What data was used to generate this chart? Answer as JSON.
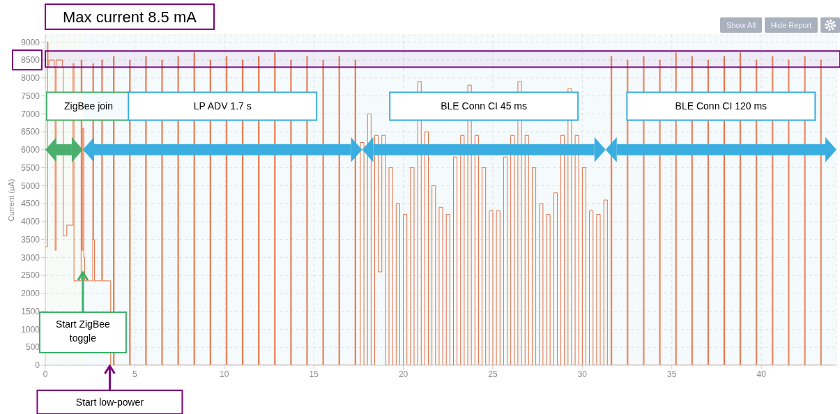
{
  "chart_data": {
    "type": "step",
    "ylabel": "Current (µA)",
    "xlim": [
      0,
      44.2
    ],
    "xticks": [
      0,
      5,
      10,
      15,
      20,
      25,
      30,
      35,
      40
    ],
    "ylim": [
      0,
      9200
    ],
    "yticks": [
      0,
      500,
      1000,
      1500,
      2000,
      2500,
      3000,
      3500,
      4000,
      4500,
      5000,
      5500,
      6000,
      6500,
      7000,
      7500,
      8000,
      8500,
      9000
    ],
    "grid": true,
    "line_style": "solid",
    "marker": "none",
    "legend": false,
    "series": [
      {
        "color": "#f26b38",
        "x": [
          0,
          0.12,
          0.15,
          0.2,
          0.5,
          0.55,
          0.6,
          0.95,
          1.0,
          1.2,
          1.5,
          1.55,
          1.6,
          2.0,
          2.05,
          2.1,
          2.15,
          2.2,
          2.65,
          2.7,
          2.75,
          3.15,
          3.2,
          3.6,
          3.65,
          3.8,
          3.85,
          4.7,
          4.75,
          5.6,
          5.65,
          6.5,
          6.55,
          7.4,
          7.45,
          8.3,
          8.35,
          9.2,
          9.25,
          10.1,
          10.15,
          11.0,
          11.05,
          11.9,
          11.95,
          12.8,
          12.85,
          13.7,
          13.75,
          14.6,
          14.65,
          15.5,
          15.55,
          16.4,
          16.45,
          17.3,
          17.35,
          17.6,
          17.8,
          18.0,
          18.2,
          18.4,
          18.6,
          18.8,
          19.0,
          19.2,
          19.4,
          19.6,
          19.8,
          20.0,
          20.2,
          20.4,
          20.6,
          20.8,
          21.0,
          21.2,
          21.4,
          21.6,
          21.8,
          22.0,
          22.2,
          22.4,
          22.6,
          22.8,
          23.0,
          23.2,
          23.4,
          23.6,
          23.8,
          24.0,
          24.2,
          24.4,
          24.6,
          24.8,
          25.0,
          25.2,
          25.4,
          25.6,
          25.8,
          26.0,
          26.2,
          26.4,
          26.6,
          26.8,
          27.0,
          27.2,
          27.4,
          27.6,
          27.8,
          28.0,
          28.2,
          28.4,
          28.6,
          28.8,
          29.0,
          29.2,
          29.4,
          29.6,
          29.8,
          30.0,
          30.2,
          30.4,
          30.6,
          30.8,
          31.0,
          31.2,
          31.4,
          31.6,
          31.65,
          32.5,
          32.55,
          33.4,
          33.45,
          34.3,
          34.35,
          35.2,
          35.25,
          36.1,
          36.15,
          37.0,
          37.05,
          37.9,
          37.95,
          38.8,
          38.85,
          39.7,
          39.75,
          40.6,
          40.65,
          41.5,
          41.55,
          42.4,
          42.45,
          43.3,
          43.35,
          44.0
        ],
        "values": [
          3300,
          9000,
          8300,
          8500,
          8300,
          3200,
          8500,
          8300,
          3600,
          3900,
          3900,
          8400,
          2350,
          8500,
          3200,
          6600,
          3000,
          2350,
          8400,
          3500,
          2350,
          8500,
          2350,
          2350,
          0,
          8600,
          0,
          8500,
          0,
          8600,
          0,
          8500,
          0,
          8600,
          0,
          8700,
          0,
          8500,
          0,
          8600,
          0,
          8500,
          0,
          8600,
          0,
          8700,
          0,
          8500,
          0,
          8600,
          0,
          8500,
          0,
          8600,
          0,
          8500,
          0,
          6200,
          0,
          7000,
          0,
          6400,
          2600,
          6400,
          0,
          5500,
          0,
          4500,
          0,
          4200,
          0,
          5500,
          0,
          7900,
          0,
          6500,
          0,
          5000,
          0,
          4400,
          0,
          4200,
          0,
          5800,
          0,
          6400,
          0,
          7800,
          0,
          6400,
          0,
          5500,
          0,
          4300,
          0,
          4300,
          0,
          5800,
          0,
          6400,
          0,
          7900,
          0,
          6400,
          0,
          5500,
          0,
          4500,
          0,
          4200,
          0,
          4800,
          0,
          6400,
          0,
          7700,
          0,
          6400,
          0,
          5500,
          0,
          4300,
          0,
          4200,
          0,
          4600,
          0,
          8600,
          0,
          8500,
          0,
          8600,
          0,
          8500,
          0,
          8700,
          0,
          8600,
          0,
          8500,
          0,
          8600,
          0,
          8700,
          0,
          8500,
          0,
          8600,
          0,
          8500,
          0,
          8600,
          0,
          8500,
          0,
          0
        ]
      }
    ],
    "bands": [
      {
        "axis": "y",
        "from": 8300,
        "to": 8750,
        "label": "Max current 8.5 mA",
        "color": "#800080"
      },
      {
        "axis": "x",
        "from": 0,
        "to": 2.1,
        "label": "ZigBee join",
        "color": "#4caf6e"
      },
      {
        "axis": "x",
        "from": 2.1,
        "to": 17.7,
        "label": "LP ADV 1.7 s",
        "color": "#3aaee0"
      },
      {
        "axis": "x",
        "from": 17.7,
        "to": 31.3,
        "label": "BLE Conn CI 45 ms",
        "color": "#3aaee0"
      },
      {
        "axis": "x",
        "from": 31.3,
        "to": 44.2,
        "label": "BLE Conn CI 120 ms",
        "color": "#3aaee0"
      }
    ],
    "annotations": [
      {
        "text": "Start ZigBee toggle",
        "x": 2.1,
        "y": 2600
      },
      {
        "text": "Start low-power",
        "x": 3.6,
        "y": 0
      },
      "Show All",
      "Hide Report"
    ]
  }
}
